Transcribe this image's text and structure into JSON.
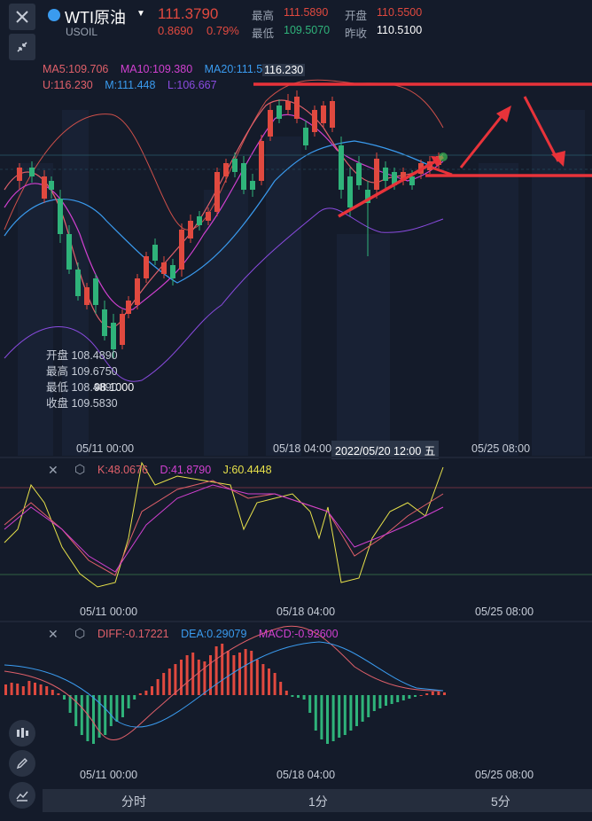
{
  "header": {
    "symbol_name": "WTI原油",
    "symbol_code": "USOIL",
    "last_price": "111.3790",
    "change": "0.8690",
    "change_pct": "0.79%",
    "high_label": "最高",
    "high_value": "111.5890",
    "open_label": "开盘",
    "open_value": "110.5500",
    "low_label": "最低",
    "low_value": "109.5070",
    "prev_close_label": "昨收",
    "prev_close_value": "110.5100"
  },
  "main_chart": {
    "ma5": "MA5:109.706",
    "ma10": "MA10:109.380",
    "ma20": "MA20:111.552",
    "upper": "U:116.230",
    "middle": "M:111.448",
    "lower": "L:106.667",
    "max_label": "116.230",
    "min_label": "98.1000",
    "ohlc_open": "开盘 108.4890",
    "ohlc_high": "最高 109.6750",
    "ohlc_low": "最低 108.4890",
    "ohlc_close": "收盘 109.5830",
    "x_ticks": [
      "05/11 00:00",
      "05/18 04:00",
      "05/25 08:00"
    ],
    "crosshair_time": "2022/05/20 12:00 五"
  },
  "kdj": {
    "k": "K:48.0676",
    "d": "D:41.8790",
    "j": "J:60.4448",
    "x_ticks": [
      "05/11 00:00",
      "05/18 04:00",
      "05/25 08:00"
    ]
  },
  "macd": {
    "diff": "DIFF:-0.17221",
    "dea": "DEA:0.29079",
    "macd": "MACD:-0.92600",
    "x_ticks": [
      "05/11 00:00",
      "05/18 04:00",
      "05/25 08:00"
    ]
  },
  "tabs": [
    "分时",
    "1分",
    "5分"
  ],
  "colors": {
    "up": "#e0493f",
    "down": "#2fb37a",
    "ma5": "#e0606a",
    "ma10": "#d040d0",
    "ma20": "#3a9bef",
    "boll_lower": "#8a4be0",
    "k_line": "#e8e24a",
    "d_line": "#d040d0"
  }
}
